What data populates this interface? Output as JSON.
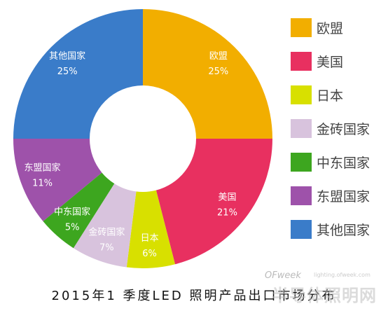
{
  "chart_data": {
    "type": "pie",
    "donut": true,
    "title": "2015年1 季度LED 照明产品出口市场分布",
    "slices": [
      {
        "name": "欧盟",
        "label": [
          "欧盟",
          "25%"
        ],
        "value": 25,
        "color": "#F2AE00"
      },
      {
        "name": "美国",
        "label": [
          "美国",
          "21%"
        ],
        "value": 21,
        "color": "#E83060"
      },
      {
        "name": "日本",
        "label": [
          "日本",
          "6%"
        ],
        "value": 6,
        "color": "#D8E000"
      },
      {
        "name": "金砖国家",
        "label": [
          "金砖国家",
          "7%"
        ],
        "value": 7,
        "color": "#D8C3DD"
      },
      {
        "name": "中东国家",
        "label": [
          "中东国家",
          "5%"
        ],
        "value": 5,
        "color": "#3DA61F"
      },
      {
        "name": "东盟国家",
        "label": [
          "东盟国家",
          "11%"
        ],
        "value": 11,
        "color": "#9E52AA"
      },
      {
        "name": "其他国家",
        "label": [
          "其他国家",
          "25%"
        ],
        "value": 25,
        "color": "#3A7CC9"
      }
    ],
    "legend_position": "right"
  },
  "watermark": {
    "brand": "OFweek",
    "site": "lighting.ofweek.com",
    "name": "半导体照明网"
  }
}
